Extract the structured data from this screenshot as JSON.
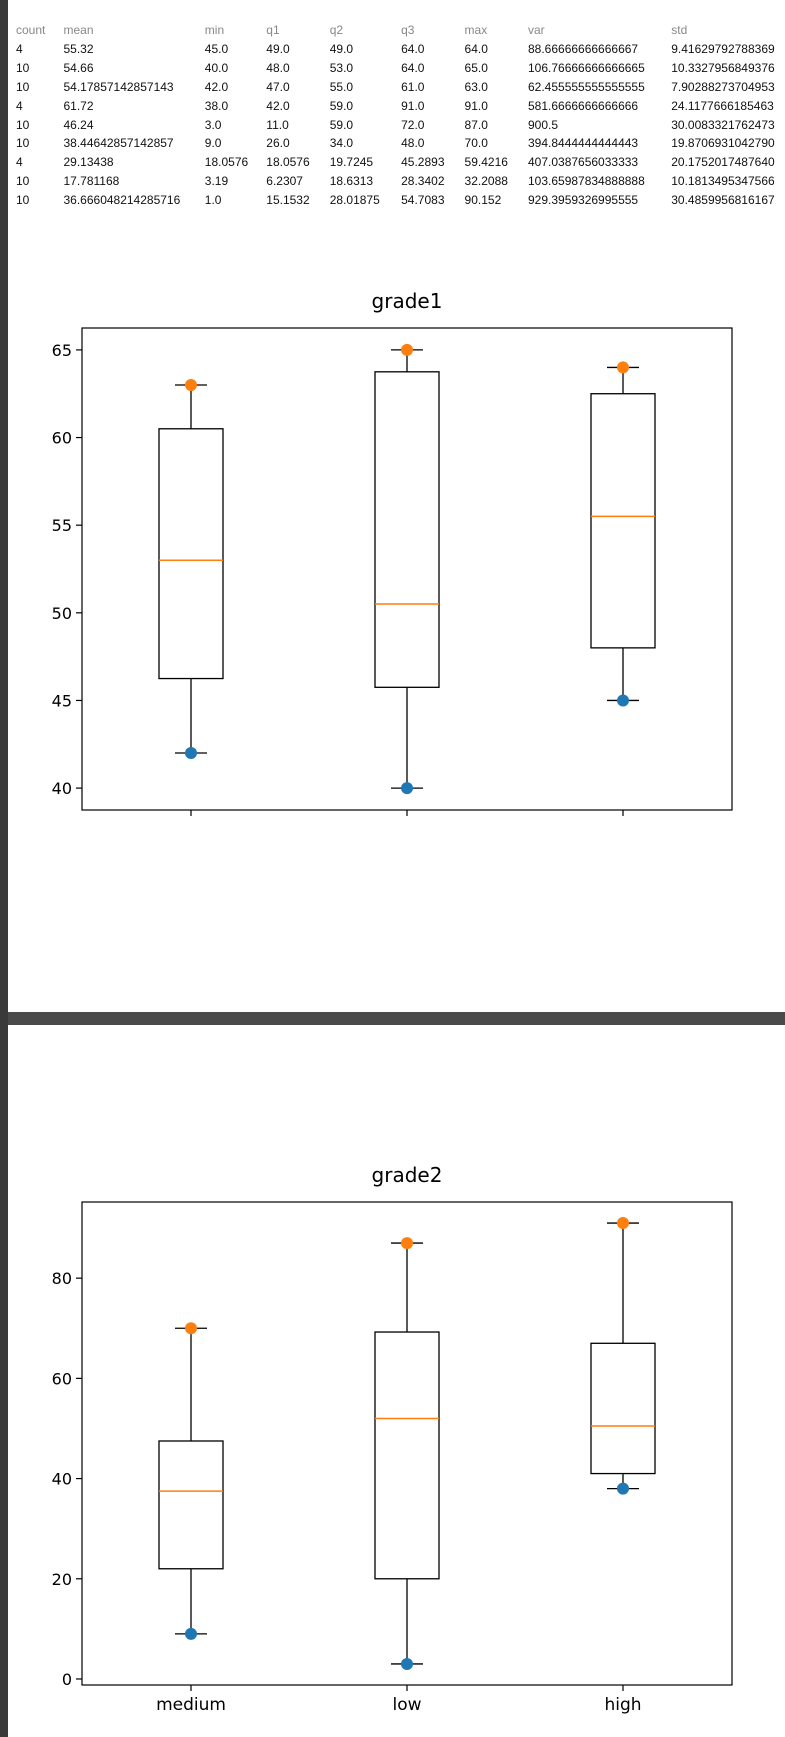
{
  "table": {
    "columns": [
      "count",
      "mean",
      "min",
      "q1",
      "q2",
      "q3",
      "max",
      "var",
      "std"
    ],
    "rows": [
      [
        "4",
        "55.32",
        "45.0",
        "49.0",
        "49.0",
        "64.0",
        "64.0",
        "88.66666666666667",
        "9.41629792788369"
      ],
      [
        "10",
        "54.66",
        "40.0",
        "48.0",
        "53.0",
        "64.0",
        "65.0",
        "106.76666666666665",
        "10.3327956849376"
      ],
      [
        "10",
        "54.17857142857143",
        "42.0",
        "47.0",
        "55.0",
        "61.0",
        "63.0",
        "62.455555555555555",
        "7.90288273704953"
      ],
      [
        "4",
        "61.72",
        "38.0",
        "42.0",
        "59.0",
        "91.0",
        "91.0",
        "581.6666666666666",
        "24.1177666185463"
      ],
      [
        "10",
        "46.24",
        "3.0",
        "11.0",
        "59.0",
        "72.0",
        "87.0",
        "900.5",
        "30.0083321762473"
      ],
      [
        "10",
        "38.44642857142857",
        "9.0",
        "26.0",
        "34.0",
        "48.0",
        "70.0",
        "394.8444444444443",
        "19.8706931042790"
      ],
      [
        "4",
        "29.13438",
        "18.0576",
        "18.0576",
        "19.7245",
        "45.2893",
        "59.4216",
        "407.0387656033333",
        "20.1752017487640"
      ],
      [
        "10",
        "17.781168",
        "3.19",
        "6.2307",
        "18.6313",
        "28.3402",
        "32.2088",
        "103.65987834888888",
        "10.1813495347566"
      ],
      [
        "10",
        "36.666048214285716",
        "1.0",
        "15.1532",
        "28.01875",
        "54.7083",
        "90.152",
        "929.3959326995555",
        "30.4859956816167"
      ]
    ]
  },
  "chart_data": [
    {
      "type": "box",
      "title": "grade1",
      "categories": [
        "medium",
        "low",
        "high"
      ],
      "boxes": [
        {
          "whislo": 42,
          "q1": 46.25,
          "med": 53,
          "q3": 60.5,
          "whishi": 63
        },
        {
          "whislo": 40,
          "q1": 45.75,
          "med": 50.5,
          "q3": 63.75,
          "whishi": 65
        },
        {
          "whislo": 45,
          "q1": 48,
          "med": 55.5,
          "q3": 62.5,
          "whishi": 64
        }
      ],
      "min_points": [
        42,
        40,
        45
      ],
      "max_points": [
        63,
        65,
        64
      ],
      "yticks": [
        40,
        45,
        50,
        55,
        60,
        65
      ],
      "ylim": [
        38.75,
        66.25
      ],
      "colors": {
        "box": "#000000",
        "median": "#ff7f0e",
        "min_point": "#1f77b4",
        "max_point": "#ff7f0e"
      }
    },
    {
      "type": "box",
      "title": "grade2",
      "categories": [
        "medium",
        "low",
        "high"
      ],
      "boxes": [
        {
          "whislo": 9,
          "q1": 22,
          "med": 37.5,
          "q3": 47.5,
          "whishi": 70
        },
        {
          "whislo": 3,
          "q1": 20,
          "med": 52,
          "q3": 69.25,
          "whishi": 87
        },
        {
          "whislo": 38,
          "q1": 41,
          "med": 50.5,
          "q3": 67,
          "whishi": 91
        }
      ],
      "min_points": [
        9,
        3,
        38
      ],
      "max_points": [
        70,
        87,
        91
      ],
      "yticks": [
        0,
        20,
        40,
        60,
        80
      ],
      "ylim": [
        -1.2,
        95.2
      ],
      "colors": {
        "box": "#000000",
        "median": "#ff7f0e",
        "min_point": "#1f77b4",
        "max_point": "#ff7f0e"
      }
    }
  ]
}
